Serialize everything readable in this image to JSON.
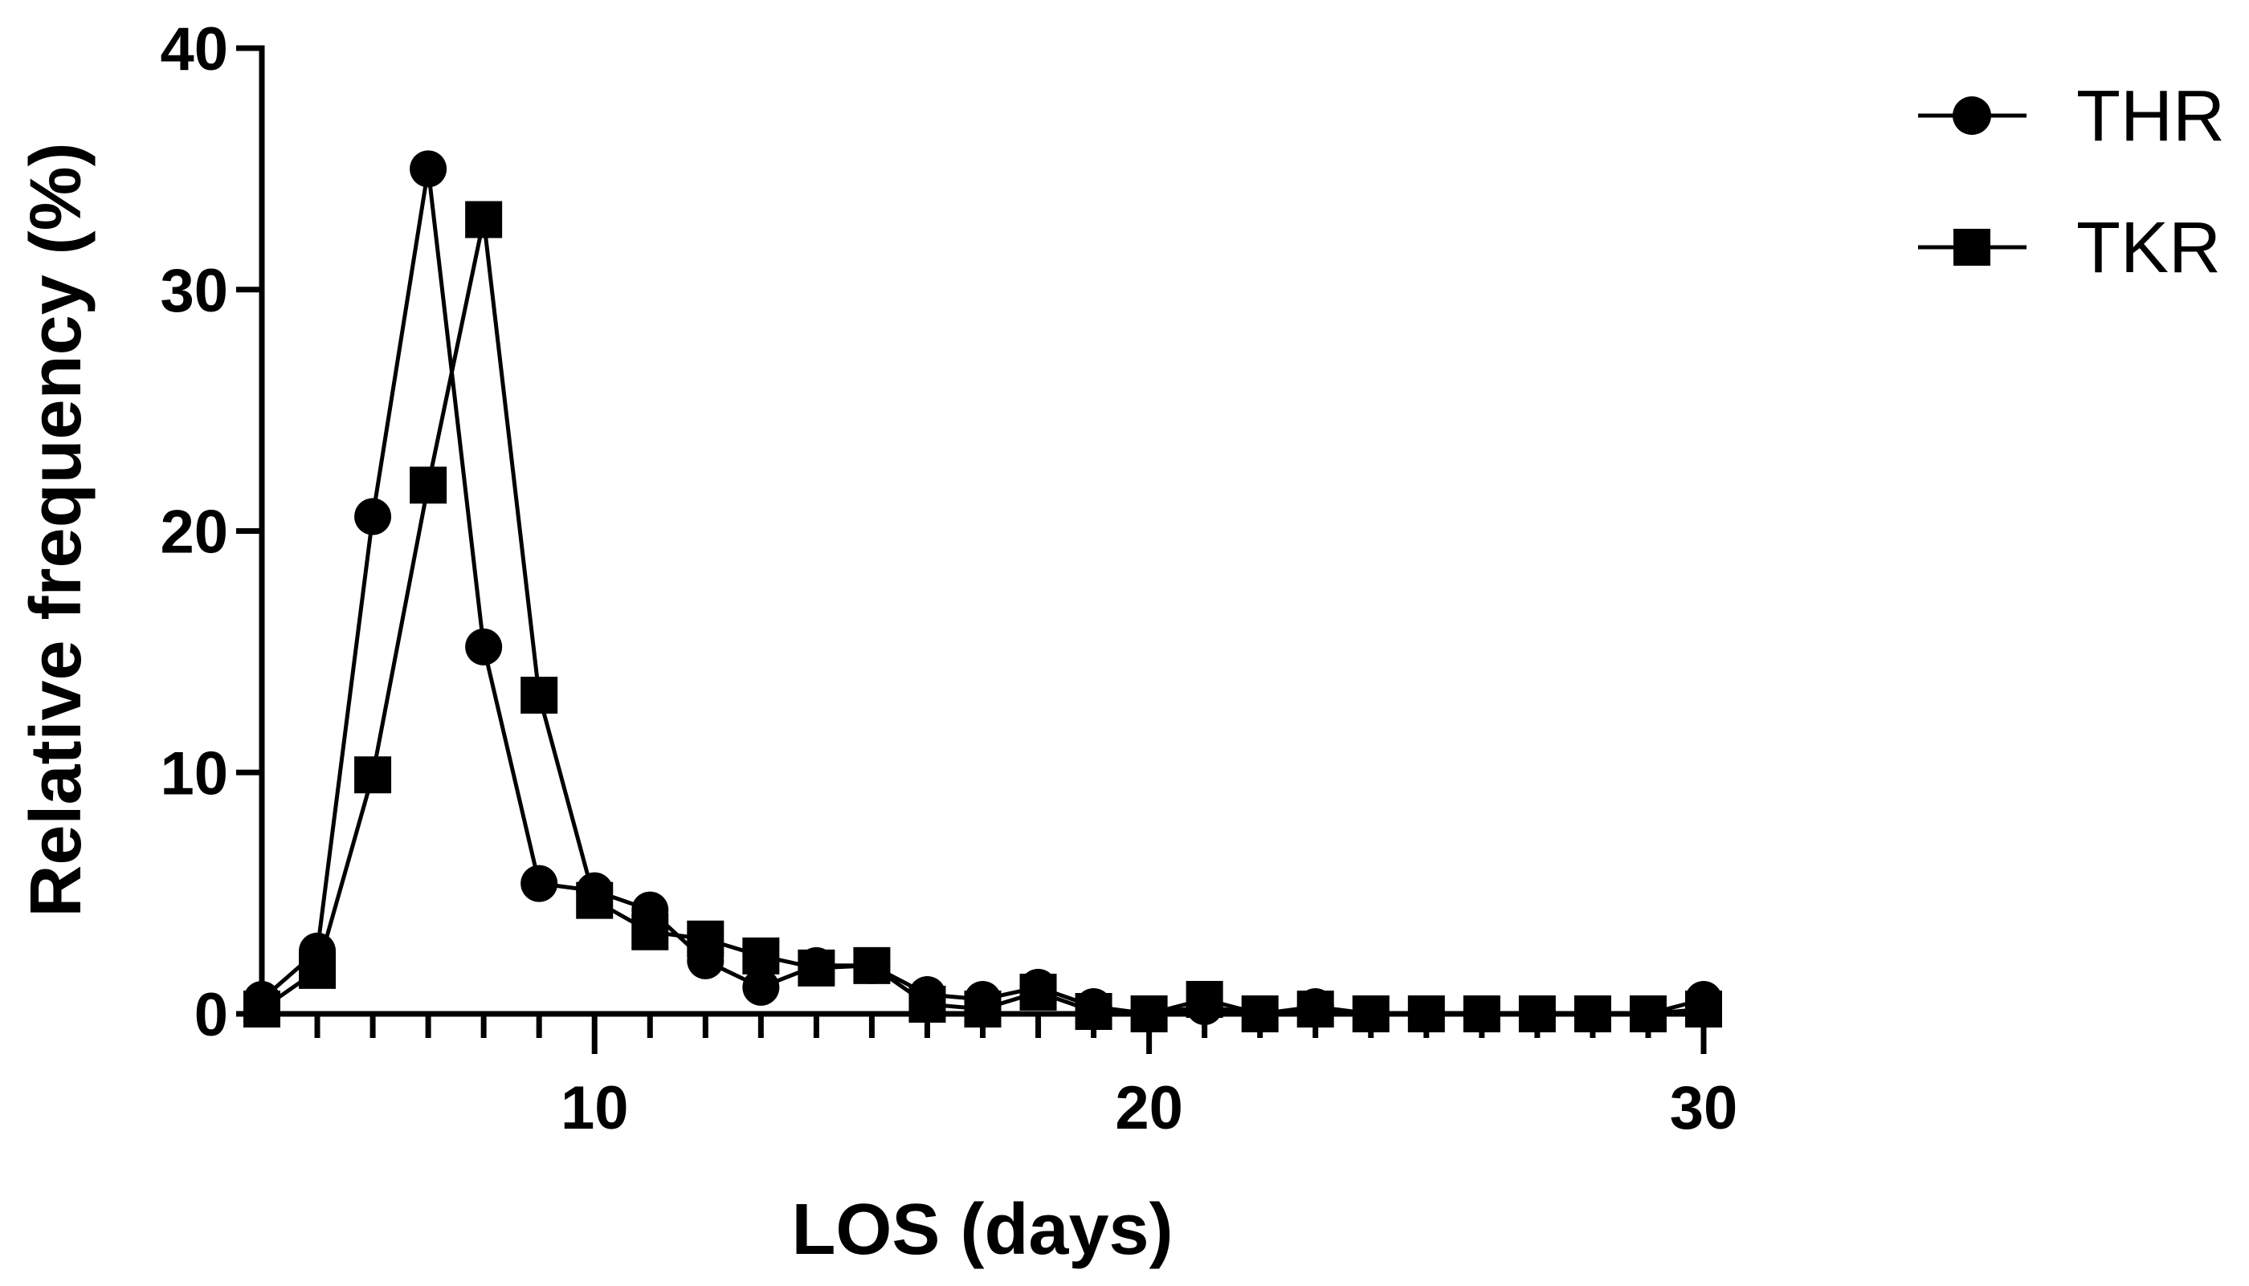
{
  "chart_data": {
    "type": "line",
    "title": "",
    "xlabel": "LOS (days)",
    "ylabel": "Relative frequency (%)",
    "xlim": [
      4,
      30
    ],
    "ylim": [
      0,
      40
    ],
    "x_major_ticks": [
      10,
      20,
      30
    ],
    "x_major_tick_labels": [
      "10",
      "20",
      "30"
    ],
    "y_ticks": [
      0,
      10,
      20,
      30,
      40
    ],
    "y_tick_labels": [
      "0",
      "10",
      "20",
      "30",
      "40"
    ],
    "legend_position": "top-right",
    "series": [
      {
        "name": "THR",
        "marker": "circle",
        "x": [
          4,
          5,
          6,
          7,
          8,
          9,
          10,
          11,
          12,
          13,
          14,
          15,
          16,
          17,
          18,
          19,
          20,
          21,
          22,
          23,
          24,
          25,
          26,
          27,
          28,
          29,
          30
        ],
        "values": [
          0.6,
          2.6,
          20.6,
          35.0,
          15.2,
          5.4,
          5.1,
          4.3,
          2.2,
          1.1,
          2.0,
          2.0,
          0.8,
          0.6,
          1.1,
          0.3,
          0.0,
          0.3,
          0.0,
          0.3,
          0.0,
          0.0,
          0.0,
          0.0,
          0.0,
          0.0,
          0.6
        ]
      },
      {
        "name": "TKR",
        "marker": "square",
        "x": [
          4,
          5,
          6,
          7,
          8,
          9,
          10,
          11,
          12,
          13,
          14,
          15,
          16,
          17,
          18,
          19,
          20,
          21,
          22,
          23,
          24,
          25,
          26,
          27,
          28,
          29,
          30
        ],
        "values": [
          0.2,
          1.8,
          9.9,
          21.9,
          32.9,
          13.2,
          4.7,
          3.4,
          3.1,
          2.4,
          1.9,
          2.0,
          0.4,
          0.2,
          0.9,
          0.1,
          0.0,
          0.6,
          0.0,
          0.2,
          0.0,
          0.0,
          0.0,
          0.0,
          0.0,
          0.0,
          0.2
        ]
      }
    ]
  }
}
